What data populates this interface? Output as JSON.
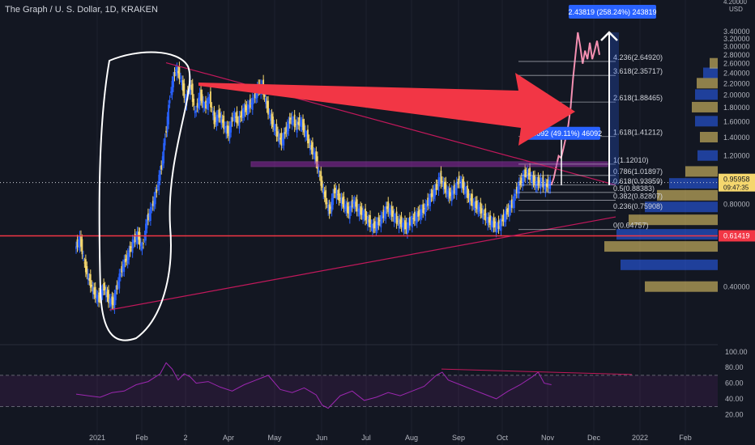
{
  "header": {
    "title": "The Graph / U. S. Dollar, 1D, KRAKEN"
  },
  "chart_data": {
    "type": "candlestick",
    "symbol": "The Graph / U. S. Dollar",
    "interval": "1D",
    "exchange": "KRAKEN",
    "currency": "USD",
    "ylim": [
      0.25,
      4.2
    ],
    "price_ticks": [
      "4.20000",
      "3.40000",
      "3.20000",
      "3.00000",
      "2.80000",
      "2.60000",
      "2.40000",
      "2.20000",
      "2.00000",
      "1.80000",
      "1.60000",
      "1.40000",
      "1.20000",
      "1.00000",
      "0.80000",
      "0.40000"
    ],
    "time_ticks": [
      "2021",
      "Feb",
      "2",
      "Apr",
      "May",
      "Jun",
      "Jul",
      "Aug",
      "Sep",
      "Oct",
      "Nov",
      "Dec",
      "2022",
      "Feb"
    ],
    "current_price": {
      "value": "0.95958",
      "countdown": "09:47:35"
    },
    "support_level": {
      "value": "0.61419",
      "color": "#f23645"
    },
    "fib_levels": [
      {
        "ratio": "0",
        "label": "0(0.64757)",
        "price": 0.64757
      },
      {
        "ratio": "0.236",
        "label": "0.236(0.75908)",
        "price": 0.75908
      },
      {
        "ratio": "0.382",
        "label": "0.382(0.82807)",
        "price": 0.82807
      },
      {
        "ratio": "0.5",
        "label": "0.5(0.88383)",
        "price": 0.88383
      },
      {
        "ratio": "0.618",
        "label": "0.618(0.93959)",
        "price": 0.93959
      },
      {
        "ratio": "0.786",
        "label": "0.786(1.01897)",
        "price": 1.01897
      },
      {
        "ratio": "1",
        "label": "1(1.12010)",
        "price": 1.1201
      },
      {
        "ratio": "1.618",
        "label": "1.618(1.41212)",
        "price": 1.41212
      },
      {
        "ratio": "2.618",
        "label": "2.618(1.88465)",
        "price": 1.88465
      },
      {
        "ratio": "3.618",
        "label": "3.618(2.35717)",
        "price": 2.35717
      },
      {
        "ratio": "4.236",
        "label": "4.236(2.64920)",
        "price": 2.6492
      }
    ],
    "measurements": [
      {
        "label": "2.43819 (258.24%) 243819",
        "from": 0.94,
        "to": 3.38,
        "color": "#2962ff"
      },
      {
        "label": "0.46092 (49.11%) 46092",
        "from": 0.94,
        "to": 1.4,
        "color": "#2962ff"
      }
    ],
    "annotations": [
      {
        "kind": "arrow",
        "color": "#f23645",
        "direction": "right"
      },
      {
        "kind": "ellipse",
        "color": "#ffffff"
      },
      {
        "kind": "trendline",
        "color": "#c2185b"
      }
    ],
    "series": [
      {
        "name": "price",
        "colors": {
          "up": "#2962ff",
          "down": "#f5d76e",
          "projection": "#f48fb1"
        }
      },
      {
        "name": "RSI",
        "color": "#9c27b0",
        "levels": [
          70,
          30
        ]
      }
    ],
    "rsi_ticks": [
      "100.00",
      "80.00",
      "60.00",
      "40.00",
      "20.00"
    ],
    "price_path": [
      [
        0,
        0.55
      ],
      [
        4,
        0.6
      ],
      [
        8,
        0.48
      ],
      [
        12,
        0.42
      ],
      [
        16,
        0.38
      ],
      [
        20,
        0.36
      ],
      [
        24,
        0.4
      ],
      [
        28,
        0.36
      ],
      [
        32,
        0.35
      ],
      [
        36,
        0.42
      ],
      [
        40,
        0.48
      ],
      [
        44,
        0.52
      ],
      [
        48,
        0.58
      ],
      [
        52,
        0.62
      ],
      [
        56,
        0.55
      ],
      [
        60,
        0.7
      ],
      [
        64,
        0.78
      ],
      [
        68,
        0.9
      ],
      [
        72,
        1.1
      ],
      [
        76,
        1.5
      ],
      [
        80,
        2.1
      ],
      [
        84,
        2.5
      ],
      [
        88,
        2.3
      ],
      [
        92,
        1.9
      ],
      [
        96,
        2.2
      ],
      [
        100,
        1.7
      ],
      [
        104,
        2.0
      ],
      [
        108,
        1.8
      ],
      [
        112,
        1.95
      ],
      [
        116,
        1.6
      ],
      [
        120,
        1.7
      ],
      [
        124,
        1.55
      ],
      [
        128,
        1.45
      ],
      [
        132,
        1.7
      ],
      [
        136,
        1.6
      ],
      [
        140,
        1.75
      ],
      [
        144,
        1.8
      ],
      [
        148,
        1.9
      ],
      [
        152,
        2.1
      ],
      [
        156,
        2.15
      ],
      [
        160,
        1.8
      ],
      [
        164,
        1.6
      ],
      [
        168,
        1.45
      ],
      [
        172,
        1.35
      ],
      [
        176,
        1.5
      ],
      [
        180,
        1.65
      ],
      [
        184,
        1.55
      ],
      [
        188,
        1.6
      ],
      [
        192,
        1.45
      ],
      [
        196,
        1.3
      ],
      [
        200,
        1.2
      ],
      [
        204,
        1.0
      ],
      [
        208,
        0.85
      ],
      [
        212,
        0.75
      ],
      [
        216,
        0.9
      ],
      [
        220,
        0.85
      ],
      [
        224,
        0.8
      ],
      [
        228,
        0.75
      ],
      [
        232,
        0.82
      ],
      [
        236,
        0.76
      ],
      [
        240,
        0.74
      ],
      [
        244,
        0.7
      ],
      [
        248,
        0.66
      ],
      [
        252,
        0.68
      ],
      [
        256,
        0.72
      ],
      [
        260,
        0.78
      ],
      [
        264,
        0.74
      ],
      [
        268,
        0.7
      ],
      [
        272,
        0.68
      ],
      [
        276,
        0.66
      ],
      [
        280,
        0.7
      ],
      [
        284,
        0.72
      ],
      [
        288,
        0.75
      ],
      [
        292,
        0.78
      ],
      [
        296,
        0.85
      ],
      [
        300,
        0.9
      ],
      [
        304,
        1.0
      ],
      [
        308,
        0.92
      ],
      [
        312,
        0.86
      ],
      [
        316,
        0.9
      ],
      [
        320,
        0.98
      ],
      [
        324,
        0.92
      ],
      [
        328,
        0.85
      ],
      [
        332,
        0.8
      ],
      [
        336,
        0.78
      ],
      [
        340,
        0.74
      ],
      [
        344,
        0.7
      ],
      [
        348,
        0.68
      ],
      [
        352,
        0.66
      ],
      [
        356,
        0.7
      ],
      [
        360,
        0.75
      ],
      [
        364,
        0.8
      ],
      [
        368,
        0.9
      ],
      [
        372,
        0.98
      ],
      [
        376,
        1.05
      ],
      [
        380,
        1.0
      ],
      [
        384,
        0.95
      ],
      [
        388,
        0.97
      ],
      [
        392,
        0.93
      ],
      [
        396,
        0.96
      ]
    ],
    "projection_path": [
      [
        396,
        0.94
      ],
      [
        398,
        1.0
      ],
      [
        400,
        1.1
      ],
      [
        402,
        1.2
      ],
      [
        404,
        1.18
      ],
      [
        406,
        1.28
      ],
      [
        408,
        1.4
      ],
      [
        410,
        1.55
      ],
      [
        412,
        1.8
      ],
      [
        414,
        2.3
      ],
      [
        416,
        2.8
      ],
      [
        418,
        3.38
      ],
      [
        420,
        3.0
      ],
      [
        422,
        2.6
      ],
      [
        424,
        2.9
      ],
      [
        426,
        2.7
      ],
      [
        428,
        3.1
      ],
      [
        430,
        2.7
      ],
      [
        432,
        2.9
      ],
      [
        434,
        3.15
      ],
      [
        436,
        2.8
      ]
    ],
    "rsi_path": [
      [
        0,
        46
      ],
      [
        10,
        44
      ],
      [
        20,
        42
      ],
      [
        30,
        48
      ],
      [
        40,
        50
      ],
      [
        50,
        58
      ],
      [
        60,
        62
      ],
      [
        70,
        72
      ],
      [
        75,
        86
      ],
      [
        80,
        78
      ],
      [
        85,
        64
      ],
      [
        90,
        72
      ],
      [
        95,
        68
      ],
      [
        100,
        60
      ],
      [
        110,
        62
      ],
      [
        120,
        55
      ],
      [
        130,
        50
      ],
      [
        140,
        58
      ],
      [
        150,
        64
      ],
      [
        160,
        70
      ],
      [
        170,
        52
      ],
      [
        180,
        48
      ],
      [
        190,
        54
      ],
      [
        200,
        45
      ],
      [
        205,
        32
      ],
      [
        210,
        28
      ],
      [
        220,
        44
      ],
      [
        230,
        50
      ],
      [
        240,
        38
      ],
      [
        250,
        42
      ],
      [
        260,
        48
      ],
      [
        270,
        44
      ],
      [
        280,
        50
      ],
      [
        290,
        56
      ],
      [
        300,
        70
      ],
      [
        305,
        74
      ],
      [
        310,
        64
      ],
      [
        320,
        58
      ],
      [
        330,
        52
      ],
      [
        340,
        46
      ],
      [
        350,
        40
      ],
      [
        360,
        50
      ],
      [
        370,
        58
      ],
      [
        380,
        68
      ],
      [
        385,
        74
      ],
      [
        390,
        60
      ],
      [
        396,
        58
      ]
    ]
  }
}
